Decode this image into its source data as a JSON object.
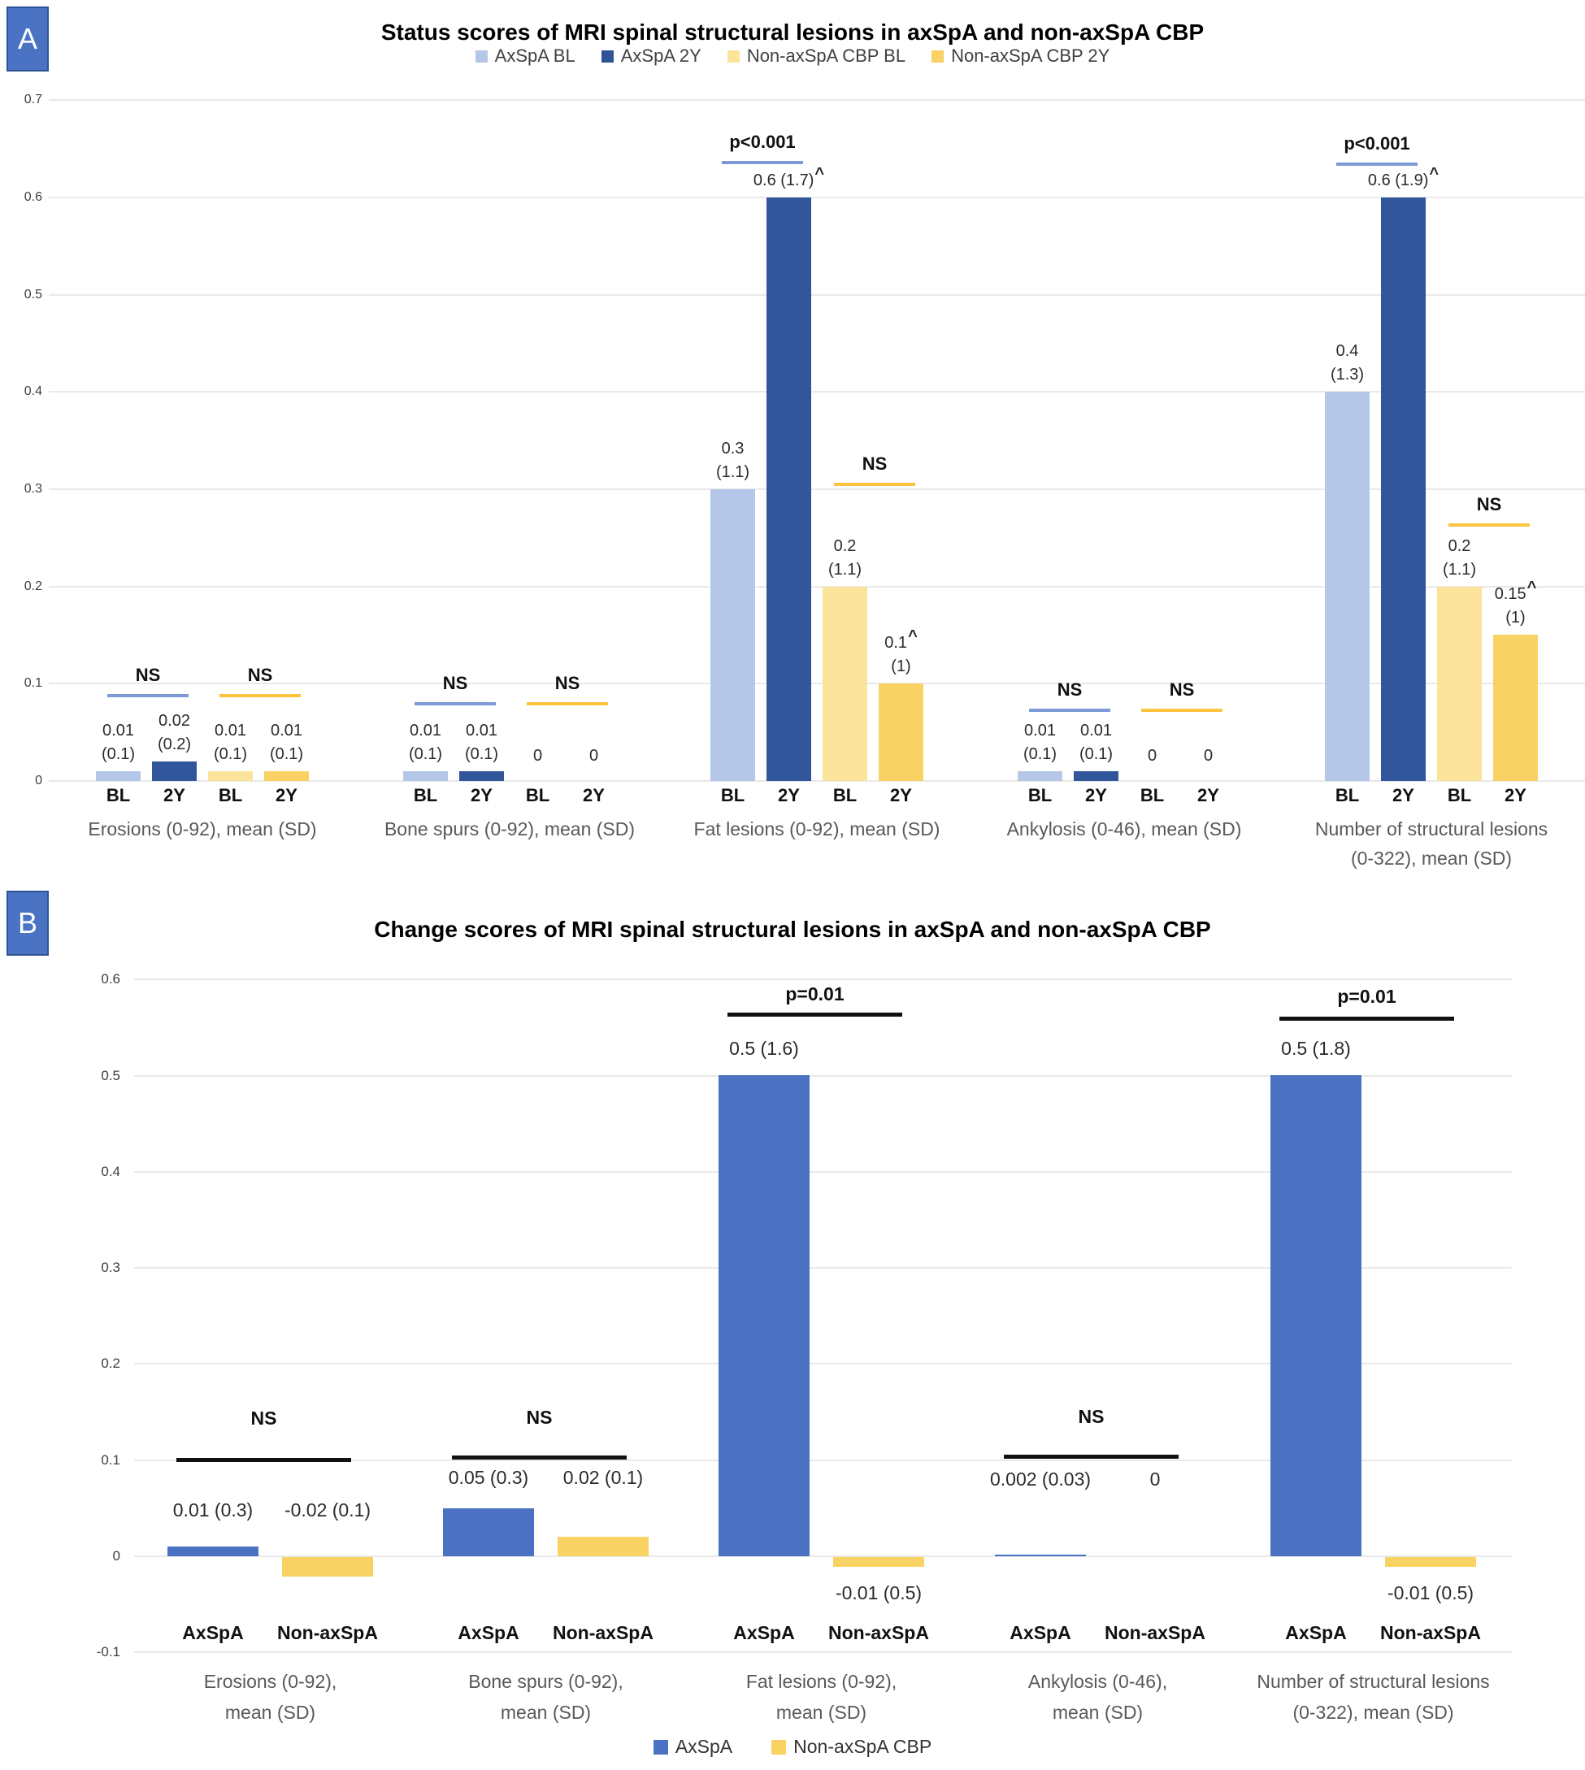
{
  "chart_data": [
    {
      "type": "bar",
      "panel": "A",
      "title": "Status scores of MRI spinal structural lesions in axSpA and non-axSpA CBP",
      "ylim": [
        0,
        0.7
      ],
      "yticks": [
        "0",
        "0.1",
        "0.2",
        "0.3",
        "0.4",
        "0.5",
        "0.6",
        "0.7"
      ],
      "grid": true,
      "legend_position": "top",
      "legend": [
        {
          "label": "AxSpA BL",
          "color": "#b5c7e8"
        },
        {
          "label": "AxSpA 2Y",
          "color": "#2f5496"
        },
        {
          "label": "Non-axSpA CBP BL",
          "color": "#fbe39b"
        },
        {
          "label": "Non-axSpA CBP 2Y",
          "color": "#f8d263"
        }
      ],
      "series_names": [
        "AxSpA BL",
        "AxSpA 2Y",
        "Non-axSpA CBP BL",
        "Non-axSpA CBP 2Y"
      ],
      "bar_colors": [
        "#b5c7e8",
        "#31569b",
        "#fbe39b",
        "#f8d263"
      ],
      "bar_ticks": [
        "BL",
        "2Y",
        "BL",
        "2Y"
      ],
      "groups": [
        {
          "label": [
            "Erosions (0-92), mean (SD)"
          ],
          "values": [
            0.01,
            0.02,
            0.01,
            0.01
          ],
          "bar_labels": [
            [
              "0.01",
              "(0.1)"
            ],
            [
              "0.02",
              "(0.2)"
            ],
            [
              "0.01",
              "(0.1)"
            ],
            [
              "0.01",
              "(0.1)"
            ]
          ],
          "annotations": [
            {
              "text": "NS",
              "bars": [
                0,
                1
              ],
              "level": 0.088,
              "color": "#7d9ad6",
              "gap": 12
            },
            {
              "text": "NS",
              "bars": [
                2,
                3
              ],
              "level": 0.088,
              "color": "#fcc43f",
              "gap": 12
            }
          ]
        },
        {
          "label": [
            "Bone spurs (0-92), mean (SD)"
          ],
          "values": [
            0.01,
            0.01,
            0,
            0
          ],
          "bar_labels": [
            [
              "0.01",
              "(0.1)"
            ],
            [
              "0.01",
              "(0.1)"
            ],
            [
              "0"
            ],
            [
              "0"
            ]
          ],
          "annotations": [
            {
              "text": "NS",
              "bars": [
                0,
                1
              ],
              "level": 0.079,
              "color": "#7d9ad6",
              "gap": 12
            },
            {
              "text": "NS",
              "bars": [
                2,
                3
              ],
              "level": 0.079,
              "color": "#fcc43f",
              "gap": 12
            }
          ]
        },
        {
          "label": [
            "Fat lesions (0-92), mean (SD)"
          ],
          "values": [
            0.3,
            0.6,
            0.2,
            0.1
          ],
          "bar_labels": [
            [
              "0.3",
              "(1.1)"
            ],
            [
              "0.6 (1.7)^"
            ],
            [
              "0.2",
              "(1.1)"
            ],
            [
              "0.1^",
              "(1)"
            ]
          ],
          "annotations": [
            {
              "text": "p<0.001",
              "bars": [
                0,
                1
              ],
              "level": 0.636,
              "color": "#7d9ad6",
              "gap": 12
            },
            {
              "text": "NS",
              "bars": [
                2,
                3
              ],
              "level": 0.305,
              "color": "#fcc43f",
              "gap": 12
            }
          ]
        },
        {
          "label": [
            "Ankylosis (0-46), mean (SD)"
          ],
          "values": [
            0.01,
            0.01,
            0,
            0
          ],
          "bar_labels": [
            [
              "0.01",
              "(0.1)"
            ],
            [
              "0.01",
              "(0.1)"
            ],
            [
              "0"
            ],
            [
              "0"
            ]
          ],
          "annotations": [
            {
              "text": "NS",
              "bars": [
                0,
                1
              ],
              "level": 0.073,
              "color": "#7d9ad6",
              "gap": 12
            },
            {
              "text": "NS",
              "bars": [
                2,
                3
              ],
              "level": 0.073,
              "color": "#fcc43f",
              "gap": 12
            }
          ]
        },
        {
          "label": [
            "Number of structural lesions",
            "(0-322), mean (SD)"
          ],
          "values": [
            0.4,
            0.6,
            0.2,
            0.15
          ],
          "bar_labels": [
            [
              "0.4",
              "(1.3)"
            ],
            [
              "0.6 (1.9)^"
            ],
            [
              "0.2",
              "(1.1)"
            ],
            [
              "0.15^",
              "(1)"
            ]
          ],
          "annotations": [
            {
              "text": "p<0.001",
              "bars": [
                0,
                1
              ],
              "level": 0.634,
              "color": "#7d9ad6",
              "gap": 12
            },
            {
              "text": "NS",
              "bars": [
                2,
                3
              ],
              "level": 0.263,
              "color": "#fcc43f",
              "gap": 12
            }
          ]
        }
      ]
    },
    {
      "type": "bar",
      "panel": "B",
      "title": "Change scores of MRI spinal structural lesions in axSpA and non-axSpA CBP",
      "ylim": [
        -0.1,
        0.6
      ],
      "yticks": [
        "-0.1",
        "0",
        "0.1",
        "0.2",
        "0.3",
        "0.4",
        "0.5",
        "0.6"
      ],
      "grid": true,
      "legend_position": "bottom",
      "legend": [
        {
          "label": "AxSpA",
          "color": "#4b72c2"
        },
        {
          "label": "Non-axSpA CBP",
          "color": "#f8d263"
        }
      ],
      "series_names": [
        "AxSpA",
        "Non-axSpA CBP"
      ],
      "bar_colors": [
        "#4b72c2",
        "#f8d263"
      ],
      "bar_ticks": [
        "AxSpA",
        "Non-axSpA"
      ],
      "groups": [
        {
          "label": [
            "Erosions (0-92),",
            "mean (SD)"
          ],
          "values": [
            0.01,
            -0.02
          ],
          "bar_labels": [
            [
              "0.01 (0.3)"
            ],
            [
              "-0.02 (0.1)"
            ]
          ],
          "annotations": [
            {
              "text": "NS",
              "bars": [
                0,
                1
              ],
              "level": 0.1,
              "color": "#111111",
              "gap": 38
            }
          ]
        },
        {
          "label": [
            "Bone spurs (0-92),",
            "mean (SD)"
          ],
          "values": [
            0.05,
            0.02
          ],
          "bar_labels": [
            [
              "0.05 (0.3)"
            ],
            [
              "0.02 (0.1)"
            ]
          ],
          "annotations": [
            {
              "text": "NS",
              "bars": [
                0,
                1
              ],
              "level": 0.102,
              "color": "#111111",
              "gap": 36
            }
          ]
        },
        {
          "label": [
            "Fat lesions (0-92),",
            "mean (SD)"
          ],
          "values": [
            0.5,
            -0.01
          ],
          "bar_labels": [
            [
              "0.5 (1.6)"
            ],
            [
              "-0.01 (0.5)"
            ]
          ],
          "annotations": [
            {
              "text": "p=0.01",
              "bars": [
                0,
                1
              ],
              "level": 0.563,
              "color": "#111111",
              "gap": 12
            }
          ]
        },
        {
          "label": [
            "Ankylosis (0-46),",
            "mean (SD)"
          ],
          "values": [
            0.002,
            0
          ],
          "bar_labels": [
            [
              "0.002 (0.03)"
            ],
            [
              "0"
            ]
          ],
          "annotations": [
            {
              "text": "NS",
              "bars": [
                0,
                1
              ],
              "level": 0.103,
              "color": "#111111",
              "gap": 36
            }
          ]
        },
        {
          "label": [
            "Number of structural lesions",
            "(0-322), mean (SD)"
          ],
          "values": [
            0.5,
            -0.01
          ],
          "bar_labels": [
            [
              "0.5 (1.8)"
            ],
            [
              "-0.01 (0.5)"
            ]
          ],
          "annotations": [
            {
              "text": "p=0.01",
              "bars": [
                0,
                1
              ],
              "level": 0.559,
              "color": "#111111",
              "gap": 14
            }
          ]
        }
      ]
    }
  ]
}
